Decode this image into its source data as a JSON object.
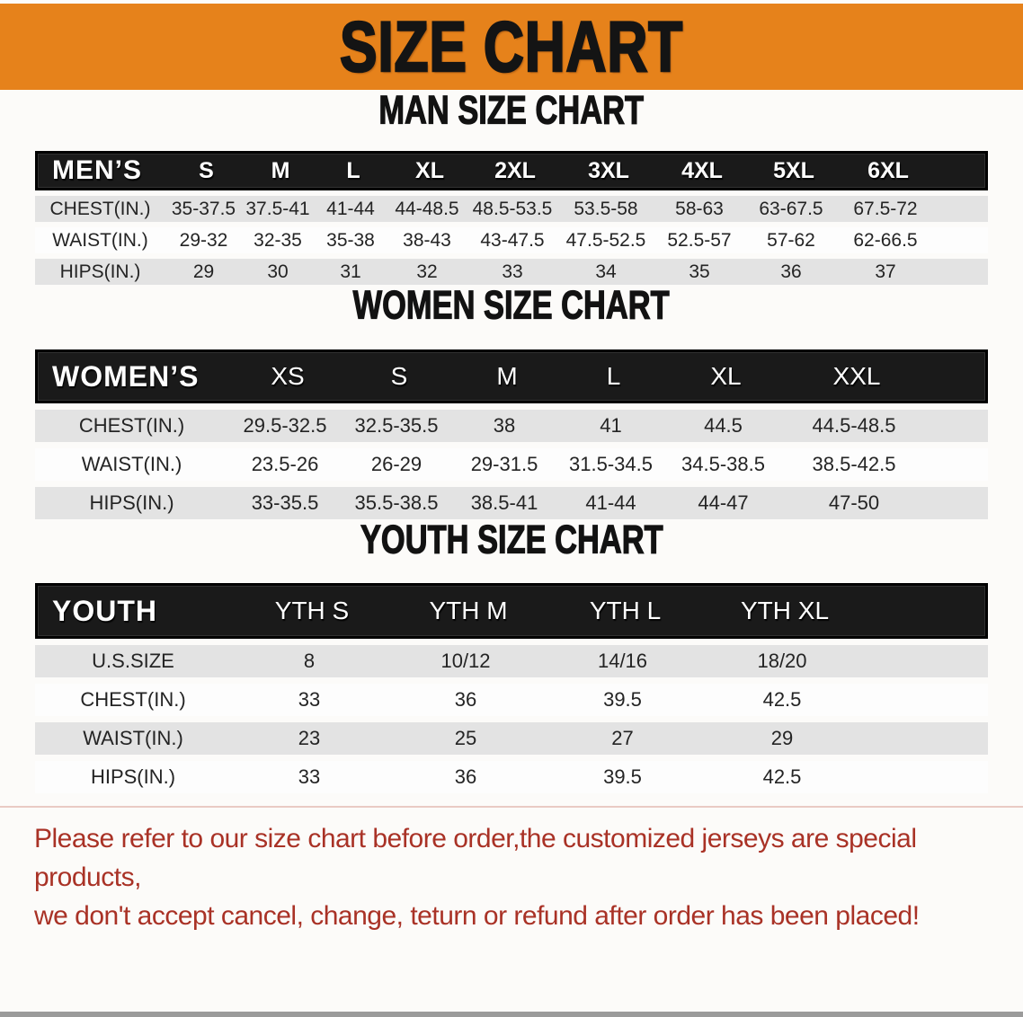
{
  "banner": {
    "title": "SIZE CHART"
  },
  "colors": {
    "banner_bg": "#E6821B",
    "header_bar": "#1a1a1a",
    "row_gray": "#E3E3E3",
    "row_white": "#FDFDFD",
    "footer_text": "#A93226"
  },
  "sections": [
    {
      "heading": "MAN SIZE CHART",
      "table": {
        "label": "MEN’S",
        "columns": [
          "S",
          "M",
          "L",
          "XL",
          "2XL",
          "3XL",
          "4XL",
          "5XL",
          "6XL"
        ],
        "rows": [
          {
            "label": "CHEST(IN.)",
            "values": [
              "35-37.5",
              "37.5-41",
              "41-44",
              "44-48.5",
              "48.5-53.5",
              "53.5-58",
              "58-63",
              "63-67.5",
              "67.5-72"
            ]
          },
          {
            "label": "WAIST(IN.)",
            "values": [
              "29-32",
              "32-35",
              "35-38",
              "38-43",
              "43-47.5",
              "47.5-52.5",
              "52.5-57",
              "57-62",
              "62-66.5"
            ]
          },
          {
            "label": "HIPS(IN.)",
            "values": [
              "29",
              "30",
              "31",
              "32",
              "33",
              "34",
              "35",
              "36",
              "37"
            ]
          }
        ]
      }
    },
    {
      "heading": "WOMEN SIZE CHART",
      "table": {
        "label": "WOMEN’S",
        "columns": [
          "XS",
          "S",
          "M",
          "L",
          "XL",
          "XXL"
        ],
        "rows": [
          {
            "label": "CHEST(IN.)",
            "values": [
              "29.5-32.5",
              "32.5-35.5",
              "38",
              "41",
              "44.5",
              "44.5-48.5"
            ]
          },
          {
            "label": "WAIST(IN.)",
            "values": [
              "23.5-26",
              "26-29",
              "29-31.5",
              "31.5-34.5",
              "34.5-38.5",
              "38.5-42.5"
            ]
          },
          {
            "label": "HIPS(IN.)",
            "values": [
              "33-35.5",
              "35.5-38.5",
              "38.5-41",
              "41-44",
              "44-47",
              "47-50"
            ]
          }
        ]
      }
    },
    {
      "heading": "YOUTH SIZE CHART",
      "table": {
        "label": "YOUTH",
        "columns": [
          "YTH S",
          "YTH M",
          "YTH L",
          "YTH XL"
        ],
        "rows": [
          {
            "label": "U.S.SIZE",
            "values": [
              "8",
              "10/12",
              "14/16",
              "18/20"
            ]
          },
          {
            "label": "CHEST(IN.)",
            "values": [
              "33",
              "36",
              "39.5",
              "42.5"
            ]
          },
          {
            "label": "WAIST(IN.)",
            "values": [
              "23",
              "25",
              "27",
              "29"
            ]
          },
          {
            "label": "HIPS(IN.)",
            "values": [
              "33",
              "36",
              "39.5",
              "42.5"
            ]
          }
        ]
      }
    }
  ],
  "footer": {
    "lines": [
      "Please refer to our size chart before order,the customized jerseys are special products,",
      "we don't accept cancel, change, teturn or refund after order has been placed!"
    ]
  }
}
